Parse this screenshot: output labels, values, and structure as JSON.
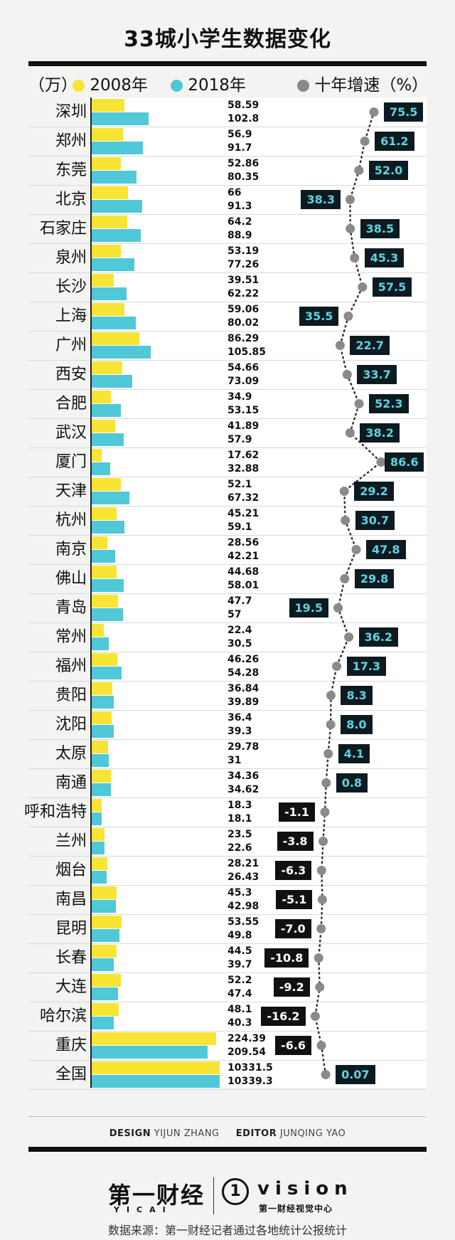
{
  "title": "33城小学生数据变化",
  "legend": {
    "unit": "（万）",
    "series_2008": "2008年",
    "series_2018": "2018年",
    "growth": "十年增速（%）",
    "colors": {
      "y2008": "#f8e434",
      "y2018": "#4fc8d8",
      "growth": "#8a8a8a"
    }
  },
  "chart_data": {
    "type": "bar",
    "categories": [
      "深圳",
      "郑州",
      "东莞",
      "北京",
      "石家庄",
      "泉州",
      "长沙",
      "上海",
      "广州",
      "西安",
      "合肥",
      "武汉",
      "厦门",
      "天津",
      "杭州",
      "南京",
      "佛山",
      "青岛",
      "常州",
      "福州",
      "贵阳",
      "沈阳",
      "太原",
      "南通",
      "呼和浩特",
      "兰州",
      "烟台",
      "南昌",
      "昆明",
      "长春",
      "大连",
      "哈尔滨",
      "重庆",
      "全国"
    ],
    "series": [
      {
        "name": "2008年",
        "values": [
          "58.59",
          "56.9",
          "52.86",
          "66",
          "64.2",
          "53.19",
          "39.51",
          "59.06",
          "86.29",
          "54.66",
          "34.9",
          "41.89",
          "17.62",
          "52.1",
          "45.21",
          "28.56",
          "44.68",
          "47.7",
          "22.4",
          "46.26",
          "36.84",
          "36.4",
          "29.78",
          "34.36",
          "18.3",
          "23.5",
          "28.21",
          "45.3",
          "53.55",
          "44.5",
          "52.2",
          "48.1",
          "224.39",
          "10331.5"
        ]
      },
      {
        "name": "2018年",
        "values": [
          "102.8",
          "91.7",
          "80.35",
          "91.3",
          "88.9",
          "77.26",
          "62.22",
          "80.02",
          "105.85",
          "73.09",
          "53.15",
          "57.9",
          "32.88",
          "67.32",
          "59.1",
          "42.21",
          "58.01",
          "57",
          "30.5",
          "54.28",
          "39.89",
          "39.3",
          "31",
          "34.62",
          "18.1",
          "22.6",
          "26.43",
          "42.98",
          "49.8",
          "39.7",
          "47.4",
          "40.3",
          "209.54",
          "10339.3"
        ]
      },
      {
        "name": "十年增速（%）",
        "values": [
          "75.5",
          "61.2",
          "52.0",
          "38.3",
          "38.5",
          "45.3",
          "57.5",
          "35.5",
          "22.7",
          "33.7",
          "52.3",
          "38.2",
          "86.6",
          "29.2",
          "30.7",
          "47.8",
          "29.8",
          "19.5",
          "36.2",
          "17.3",
          "8.3",
          "8.0",
          "4.1",
          "0.8",
          "-1.1",
          "-3.8",
          "-6.3",
          "-5.1",
          "-7.0",
          "-10.8",
          "-9.2",
          "-16.2",
          "-6.6",
          "0.07"
        ]
      }
    ]
  },
  "credits": {
    "design_label": "DESIGN",
    "design_name": "YIJUN ZHANG",
    "editor_label": "EDITOR",
    "editor_name": "JUNQING YAO"
  },
  "logos": {
    "yicai": "第一财经",
    "yicai_sub": "YICAI",
    "vision_mark": "1",
    "vision": "vision",
    "vision_sub": "第一财经视觉中心"
  },
  "source": "数据来源：第一财经记者通过各地统计公报统计"
}
